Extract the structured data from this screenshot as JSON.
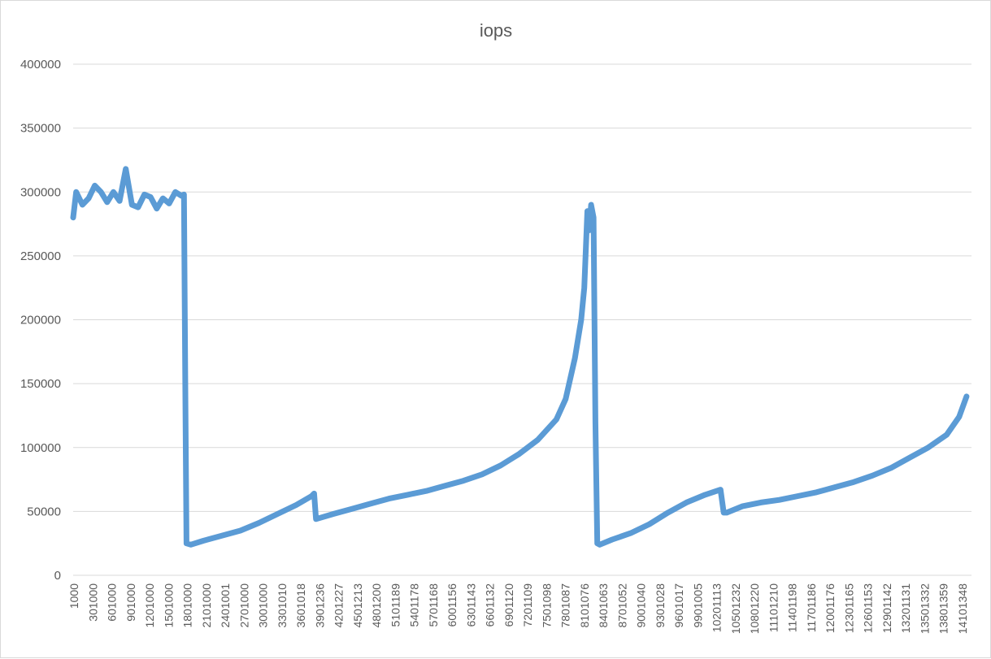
{
  "chart_data": {
    "type": "line",
    "title": "iops",
    "xlabel": "",
    "ylabel": "",
    "ylim": [
      0,
      400000
    ],
    "yticks": [
      0,
      50000,
      100000,
      150000,
      200000,
      250000,
      300000,
      350000,
      400000
    ],
    "ytick_labels": [
      "0",
      "50000",
      "100000",
      "150000",
      "200000",
      "250000",
      "300000",
      "350000",
      "400000"
    ],
    "grid": true,
    "legend": "none",
    "line_color": "#5b9bd5",
    "x_tick_labels": [
      "1000",
      "301000",
      "601000",
      "901000",
      "1201000",
      "1501000",
      "1801000",
      "2101000",
      "2401001",
      "2701000",
      "3001000",
      "3301010",
      "3601018",
      "3901236",
      "4201227",
      "4501213",
      "4801200",
      "5101189",
      "5401178",
      "5701168",
      "6001156",
      "6301143",
      "6601132",
      "6901120",
      "7201109",
      "7501098",
      "7801087",
      "8101076",
      "8401063",
      "8701052",
      "9001040",
      "9301028",
      "9601017",
      "9901005",
      "10201113",
      "10501232",
      "10801220",
      "11101210",
      "11401198",
      "11701186",
      "12001176",
      "12301165",
      "12601153",
      "12901142",
      "13201131",
      "13501332",
      "13801359",
      "14101348"
    ],
    "x": [
      1000,
      50000,
      150000,
      250000,
      350000,
      450000,
      550000,
      650000,
      750000,
      850000,
      950000,
      1050000,
      1150000,
      1250000,
      1350000,
      1450000,
      1550000,
      1650000,
      1750000,
      1790000,
      1810000,
      1830000,
      1900000,
      2100000,
      2400000,
      2700000,
      3000000,
      3300000,
      3600000,
      3850000,
      3890000,
      3920000,
      4200000,
      4500000,
      4800000,
      5100000,
      5400000,
      5700000,
      6000000,
      6300000,
      6600000,
      6900000,
      7200000,
      7500000,
      7800000,
      7950000,
      8100000,
      8200000,
      8250000,
      8300000,
      8330000,
      8360000,
      8400000,
      8430000,
      8460000,
      8500000,
      8700000,
      9000000,
      9300000,
      9600000,
      9900000,
      10200000,
      10450000,
      10500000,
      10550000,
      10800000,
      11100000,
      11400000,
      11700000,
      12000000,
      12300000,
      12600000,
      12900000,
      13200000,
      13500000,
      13800000,
      14100000,
      14300000,
      14420000
    ],
    "y": [
      280000,
      300000,
      290000,
      295000,
      305000,
      300000,
      292000,
      300000,
      293000,
      318000,
      290000,
      288000,
      298000,
      296000,
      287000,
      295000,
      291000,
      300000,
      297000,
      298000,
      150000,
      25000,
      24000,
      27000,
      31000,
      35000,
      41000,
      48000,
      55000,
      62000,
      64000,
      44000,
      48000,
      52000,
      56000,
      60000,
      63000,
      66000,
      70000,
      74000,
      79000,
      86000,
      95000,
      106000,
      122000,
      138000,
      170000,
      200000,
      225000,
      285000,
      270000,
      290000,
      280000,
      120000,
      25000,
      24000,
      28000,
      33000,
      40000,
      49000,
      57000,
      63000,
      67000,
      49000,
      49000,
      54000,
      57000,
      59000,
      62000,
      65000,
      69000,
      73000,
      78000,
      84000,
      92000,
      100000,
      110000,
      124000,
      140000
    ]
  }
}
